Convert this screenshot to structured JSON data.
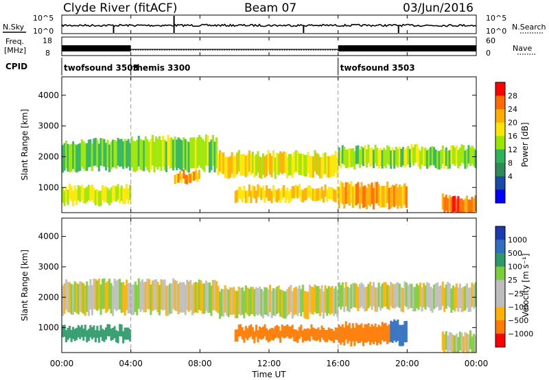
{
  "header": {
    "station": "Clyde River (fitACF)",
    "beam": "Beam 07",
    "date": "03/Jun/2016"
  },
  "strip_nsky": {
    "left_label": "N.Sky",
    "right_label": "N.Search",
    "ticks": [
      "10^5",
      "10^0"
    ],
    "right_ticks": [
      "10^5",
      "10^0"
    ]
  },
  "strip_freq": {
    "left_label": "Freq.",
    "left_unit": "[MHz]",
    "left_ticks": [
      "18",
      "8"
    ],
    "right_ticks": [
      "60",
      "0"
    ],
    "right_label": "Nave"
  },
  "cpid": {
    "label": "CPID",
    "segments": [
      {
        "name": "twofsound",
        "id": "3503",
        "start_hour": 0,
        "end_hour": 4
      },
      {
        "name": "themis",
        "id": "3300",
        "start_hour": 4,
        "end_hour": 16
      },
      {
        "name": "twofsound",
        "id": "3503",
        "start_hour": 16,
        "end_hour": 24
      }
    ]
  },
  "chart_data": [
    {
      "type": "heatmap",
      "title": "",
      "quantity": "Power",
      "ylabel": "Slant Range [km]",
      "xlabel": "",
      "xlim_hours": [
        0,
        24
      ],
      "ylim": [
        180,
        4600
      ],
      "yticks": [
        "1000",
        "2000",
        "3000",
        "4000"
      ],
      "colorbar": {
        "label": "Power [dB]",
        "ticks": [
          "28",
          "24",
          "20",
          "16",
          "12",
          "8",
          "4"
        ],
        "colors": [
          "#ff0000",
          "#ff6a00",
          "#ffae00",
          "#ffe600",
          "#9be600",
          "#2fb35a",
          "#2f8a5a",
          "#1a4aa8",
          "#0000ff"
        ]
      },
      "bands": [
        {
          "t0": 0,
          "t1": 4,
          "r0": 1600,
          "r1": 2500,
          "level": 12
        },
        {
          "t0": 0,
          "t1": 4,
          "r0": 500,
          "r1": 1000,
          "level": 16
        },
        {
          "t0": 4,
          "t1": 9,
          "r0": 1600,
          "r1": 2600,
          "level": 14
        },
        {
          "t0": 6.5,
          "t1": 8,
          "r0": 1200,
          "r1": 1500,
          "level": 22
        },
        {
          "t0": 9,
          "t1": 16,
          "r0": 1400,
          "r1": 2100,
          "level": 18
        },
        {
          "t0": 10,
          "t1": 16,
          "r0": 600,
          "r1": 1000,
          "level": 20
        },
        {
          "t0": 16,
          "t1": 24,
          "r0": 1700,
          "r1": 2300,
          "level": 14
        },
        {
          "t0": 16,
          "t1": 20,
          "r0": 400,
          "r1": 1100,
          "level": 22
        },
        {
          "t0": 22,
          "t1": 24,
          "r0": 180,
          "r1": 700,
          "level": 26
        }
      ]
    },
    {
      "type": "heatmap",
      "title": "",
      "quantity": "Velocity",
      "ylabel": "Slant Range [km]",
      "xlabel": "Time UT",
      "xlim_hours": [
        0,
        24
      ],
      "ylim": [
        180,
        4600
      ],
      "yticks": [
        "1000",
        "2000",
        "3000",
        "4000"
      ],
      "xticks": [
        "00:00",
        "04:00",
        "08:00",
        "12:00",
        "16:00",
        "20:00",
        "00:00"
      ],
      "colorbar": {
        "label": "Velocity [m s⁻¹]",
        "ticks": [
          "1000",
          "500",
          "100",
          "25",
          "−25",
          "−100",
          "−500",
          "−1000"
        ],
        "colors": [
          "#1a3ab0",
          "#2f6fbf",
          "#2e9a6a",
          "#7ccd3a",
          "#bdbdbd",
          "#bdbdbd",
          "#ffb000",
          "#ff7a00",
          "#ff0000"
        ]
      },
      "bands": [
        {
          "t0": 0,
          "t1": 9,
          "r0": 1500,
          "r1": 2500,
          "level": 0
        },
        {
          "t0": 0,
          "t1": 4,
          "r0": 600,
          "r1": 1000,
          "level": 300
        },
        {
          "t0": 9,
          "t1": 16,
          "r0": 1400,
          "r1": 2300,
          "level": 0
        },
        {
          "t0": 10,
          "t1": 16,
          "r0": 600,
          "r1": 1000,
          "level": -200
        },
        {
          "t0": 16,
          "t1": 24,
          "r0": 1600,
          "r1": 2400,
          "level": 0
        },
        {
          "t0": 16,
          "t1": 19,
          "r0": 500,
          "r1": 1100,
          "level": -150
        },
        {
          "t0": 19,
          "t1": 20,
          "r0": 500,
          "r1": 1200,
          "level": 600
        },
        {
          "t0": 22,
          "t1": 24,
          "r0": 180,
          "r1": 800,
          "level": 0
        }
      ]
    }
  ]
}
